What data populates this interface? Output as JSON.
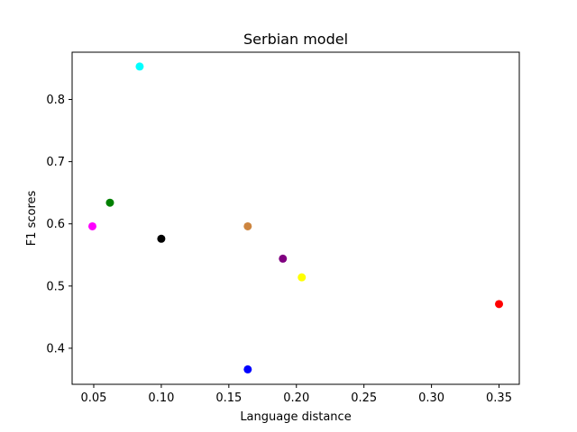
{
  "chart_data": {
    "type": "scatter",
    "title": "Serbian model",
    "xlabel": "Language distance",
    "ylabel": "F1 scores",
    "xlim": [
      0.034,
      0.365
    ],
    "ylim": [
      0.342,
      0.876
    ],
    "xticks": [
      0.05,
      0.1,
      0.15,
      0.2,
      0.25,
      0.3,
      0.35
    ],
    "xtick_labels": [
      "0.05",
      "0.10",
      "0.15",
      "0.20",
      "0.25",
      "0.30",
      "0.35"
    ],
    "yticks": [
      0.4,
      0.5,
      0.6,
      0.7,
      0.8
    ],
    "ytick_labels": [
      "0.4",
      "0.5",
      "0.6",
      "0.7",
      "0.8"
    ],
    "grid": false,
    "points": [
      {
        "x": 0.049,
        "y": 0.596,
        "color": "#ff00ff"
      },
      {
        "x": 0.062,
        "y": 0.634,
        "color": "#008000"
      },
      {
        "x": 0.084,
        "y": 0.853,
        "color": "#00ffff"
      },
      {
        "x": 0.1,
        "y": 0.576,
        "color": "#000000"
      },
      {
        "x": 0.164,
        "y": 0.596,
        "color": "#cd853f"
      },
      {
        "x": 0.164,
        "y": 0.366,
        "color": "#0000ff"
      },
      {
        "x": 0.19,
        "y": 0.544,
        "color": "#800080"
      },
      {
        "x": 0.204,
        "y": 0.514,
        "color": "#ffff00"
      },
      {
        "x": 0.35,
        "y": 0.471,
        "color": "#ff0000"
      }
    ]
  }
}
